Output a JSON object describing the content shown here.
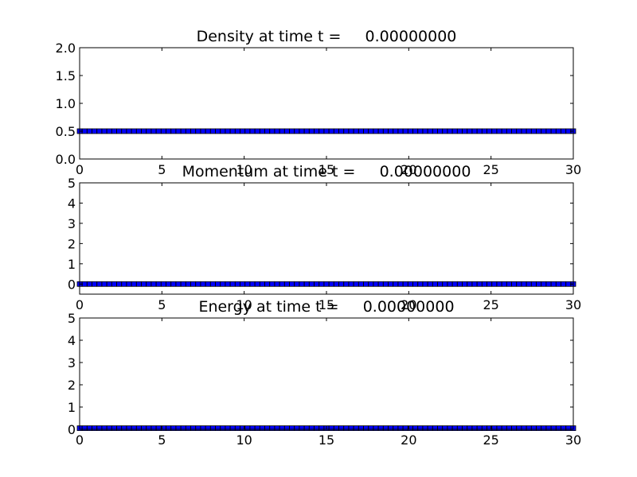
{
  "chart_data": [
    {
      "type": "scatter",
      "title": "Density at time t =     0.00000000",
      "xlim": [
        0,
        30
      ],
      "ylim": [
        0,
        2
      ],
      "xticks": [
        0,
        5,
        10,
        15,
        20,
        25,
        30
      ],
      "yticks": [
        0,
        0.5,
        1,
        1.5,
        2
      ],
      "ytick_labels": [
        "0.0",
        "0.5",
        "1.0",
        "1.5",
        "2.0"
      ],
      "x_range": [
        0,
        30
      ],
      "n_points": 101,
      "y_value": 0.5,
      "marker": "square",
      "marker_color": "#0000ff",
      "grid": false
    },
    {
      "type": "scatter",
      "title": "Momentum at time t =     0.00000000",
      "xlim": [
        0,
        30
      ],
      "ylim": [
        -0.5,
        5
      ],
      "xticks": [
        0,
        5,
        10,
        15,
        20,
        25,
        30
      ],
      "yticks": [
        0,
        1,
        2,
        3,
        4,
        5
      ],
      "ytick_labels": [
        "0",
        "1",
        "2",
        "3",
        "4",
        "5"
      ],
      "x_range": [
        0,
        30
      ],
      "n_points": 101,
      "y_value": 0,
      "marker": "square",
      "marker_color": "#0000ff",
      "grid": false
    },
    {
      "type": "scatter",
      "title": "Energy at time t =     0.00000000",
      "xlim": [
        0,
        30
      ],
      "ylim": [
        0,
        5
      ],
      "xticks": [
        0,
        5,
        10,
        15,
        20,
        25,
        30
      ],
      "yticks": [
        0,
        1,
        2,
        3,
        4,
        5
      ],
      "ytick_labels": [
        "0",
        "1",
        "2",
        "3",
        "4",
        "5"
      ],
      "x_range": [
        0,
        30
      ],
      "n_points": 101,
      "y_value": 0.05,
      "marker": "square",
      "marker_color": "#0000ff",
      "grid": false
    }
  ]
}
